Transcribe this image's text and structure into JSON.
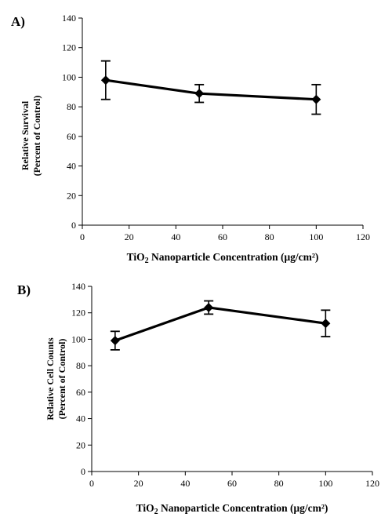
{
  "chart_data": [
    {
      "panel_label": "A)",
      "type": "line",
      "x": [
        10,
        50,
        100
      ],
      "series": [
        {
          "values": [
            98,
            89,
            85
          ],
          "errors": [
            13,
            6,
            10
          ],
          "marker": "diamond",
          "color": "#000000"
        }
      ],
      "xlim": [
        0,
        120
      ],
      "ylim": [
        0,
        140
      ],
      "xticks": [
        0,
        20,
        40,
        60,
        80,
        100,
        120
      ],
      "yticks": [
        0,
        20,
        40,
        60,
        80,
        100,
        120,
        140
      ],
      "ylabel_line1": "Relative Survival",
      "ylabel_line2": "(Percent of Control)",
      "xlabel_pre": "TiO",
      "xlabel_sub": "2",
      "xlabel_post": " Nanoparticle Concentration (μg/cm²)",
      "grid": false
    },
    {
      "panel_label": "B)",
      "type": "line",
      "x": [
        10,
        50,
        100
      ],
      "series": [
        {
          "values": [
            99,
            124,
            112
          ],
          "errors": [
            7,
            5,
            10
          ],
          "marker": "diamond",
          "color": "#000000"
        }
      ],
      "xlim": [
        0,
        120
      ],
      "ylim": [
        0,
        140
      ],
      "xticks": [
        0,
        20,
        40,
        60,
        80,
        100,
        120
      ],
      "yticks": [
        0,
        20,
        40,
        60,
        80,
        100,
        120,
        140
      ],
      "ylabel_line1": "Relative Cell Counts",
      "ylabel_line2": "(Percent of Control)",
      "xlabel_pre": "TiO",
      "xlabel_sub": "2",
      "xlabel_post": " Nanoparticle Concentration (μg/cm²)",
      "grid": false
    }
  ]
}
